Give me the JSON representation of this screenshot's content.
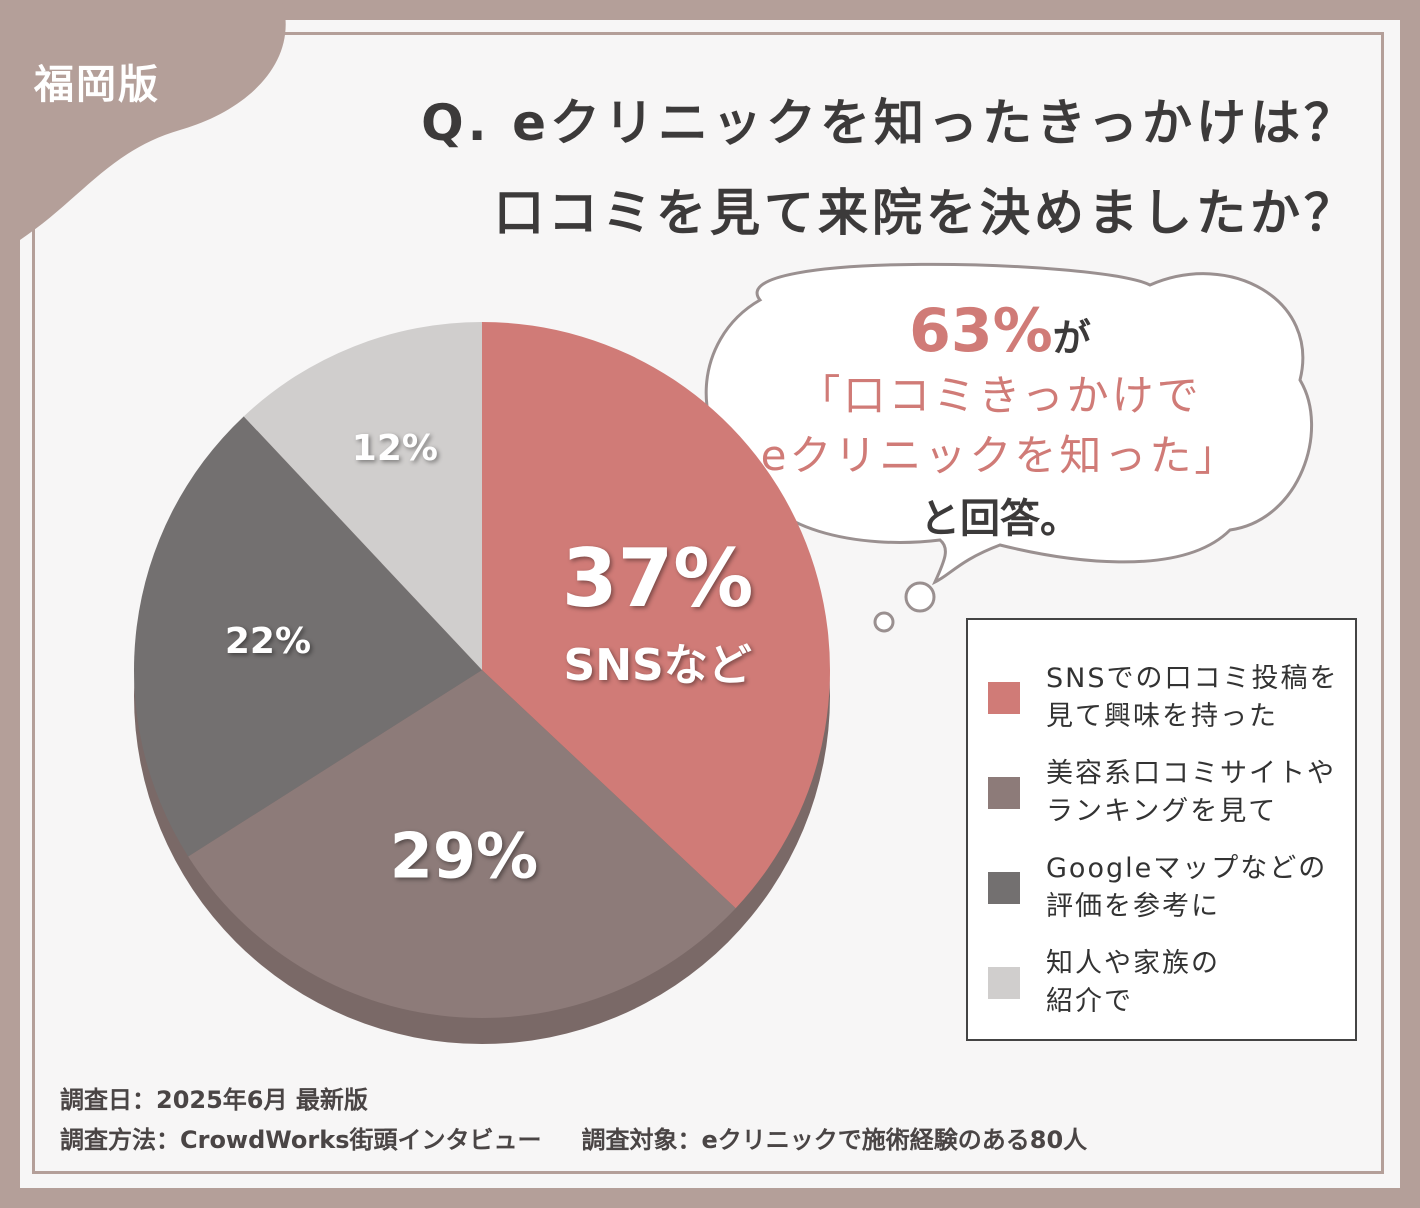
{
  "badge": "福岡版",
  "title": "Q. eクリニックを知ったきっかけは？\n口コミを見て来院を決めましたか？",
  "callout": {
    "highlight": "63%",
    "highlight_suffix": "が",
    "quote": "「口コミきっかけで\neクリニックを知った」",
    "ending": "と回答。"
  },
  "chart_data": {
    "type": "pie",
    "categories": [
      "SNSでの口コミ投稿を\n見て興味を持った",
      "美容系口コミサイトや\nランキングを見て",
      "Googleマップなどの\n評価を参考に",
      "知人や家族の\n紹介で"
    ],
    "values": [
      37,
      29,
      22,
      12
    ],
    "value_labels": [
      "37%",
      "29%",
      "22%",
      "12%"
    ],
    "slice_note": "SNSなど",
    "colors": [
      "#d07b77",
      "#8d7b79",
      "#737070",
      "#d0cecd"
    ],
    "legend": "right"
  },
  "notes": [
    "調査日：2025年6月 最新版",
    "調査方法：CrowdWorks街頭インタビュー",
    "調査対象：eクリニックで施術経験のある80人"
  ]
}
